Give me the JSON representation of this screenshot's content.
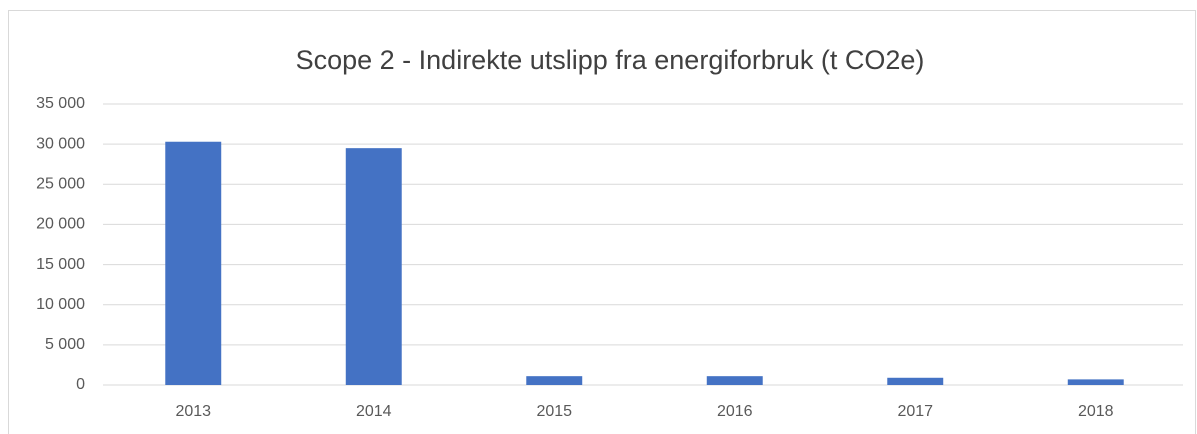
{
  "chart_data": {
    "type": "bar",
    "title": "Scope 2 - Indirekte utslipp fra energiforbruk (t CO2e)",
    "categories": [
      "2013",
      "2014",
      "2015",
      "2016",
      "2017",
      "2018"
    ],
    "values": [
      30300,
      29500,
      1100,
      1100,
      900,
      700
    ],
    "color": "#4472c4",
    "ylim": [
      0,
      35000
    ],
    "yticks": [
      0,
      {
        "value": 5000,
        "label": "5 000"
      },
      {
        "value": 10000,
        "label": "10 000"
      },
      {
        "value": 15000,
        "label": "15 000"
      },
      {
        "value": 20000,
        "label": "20 000"
      },
      {
        "value": 25000,
        "label": "25 000"
      },
      {
        "value": 30000,
        "label": "30 000"
      },
      {
        "value": 35000,
        "label": "35 000"
      }
    ],
    "grid": true
  }
}
